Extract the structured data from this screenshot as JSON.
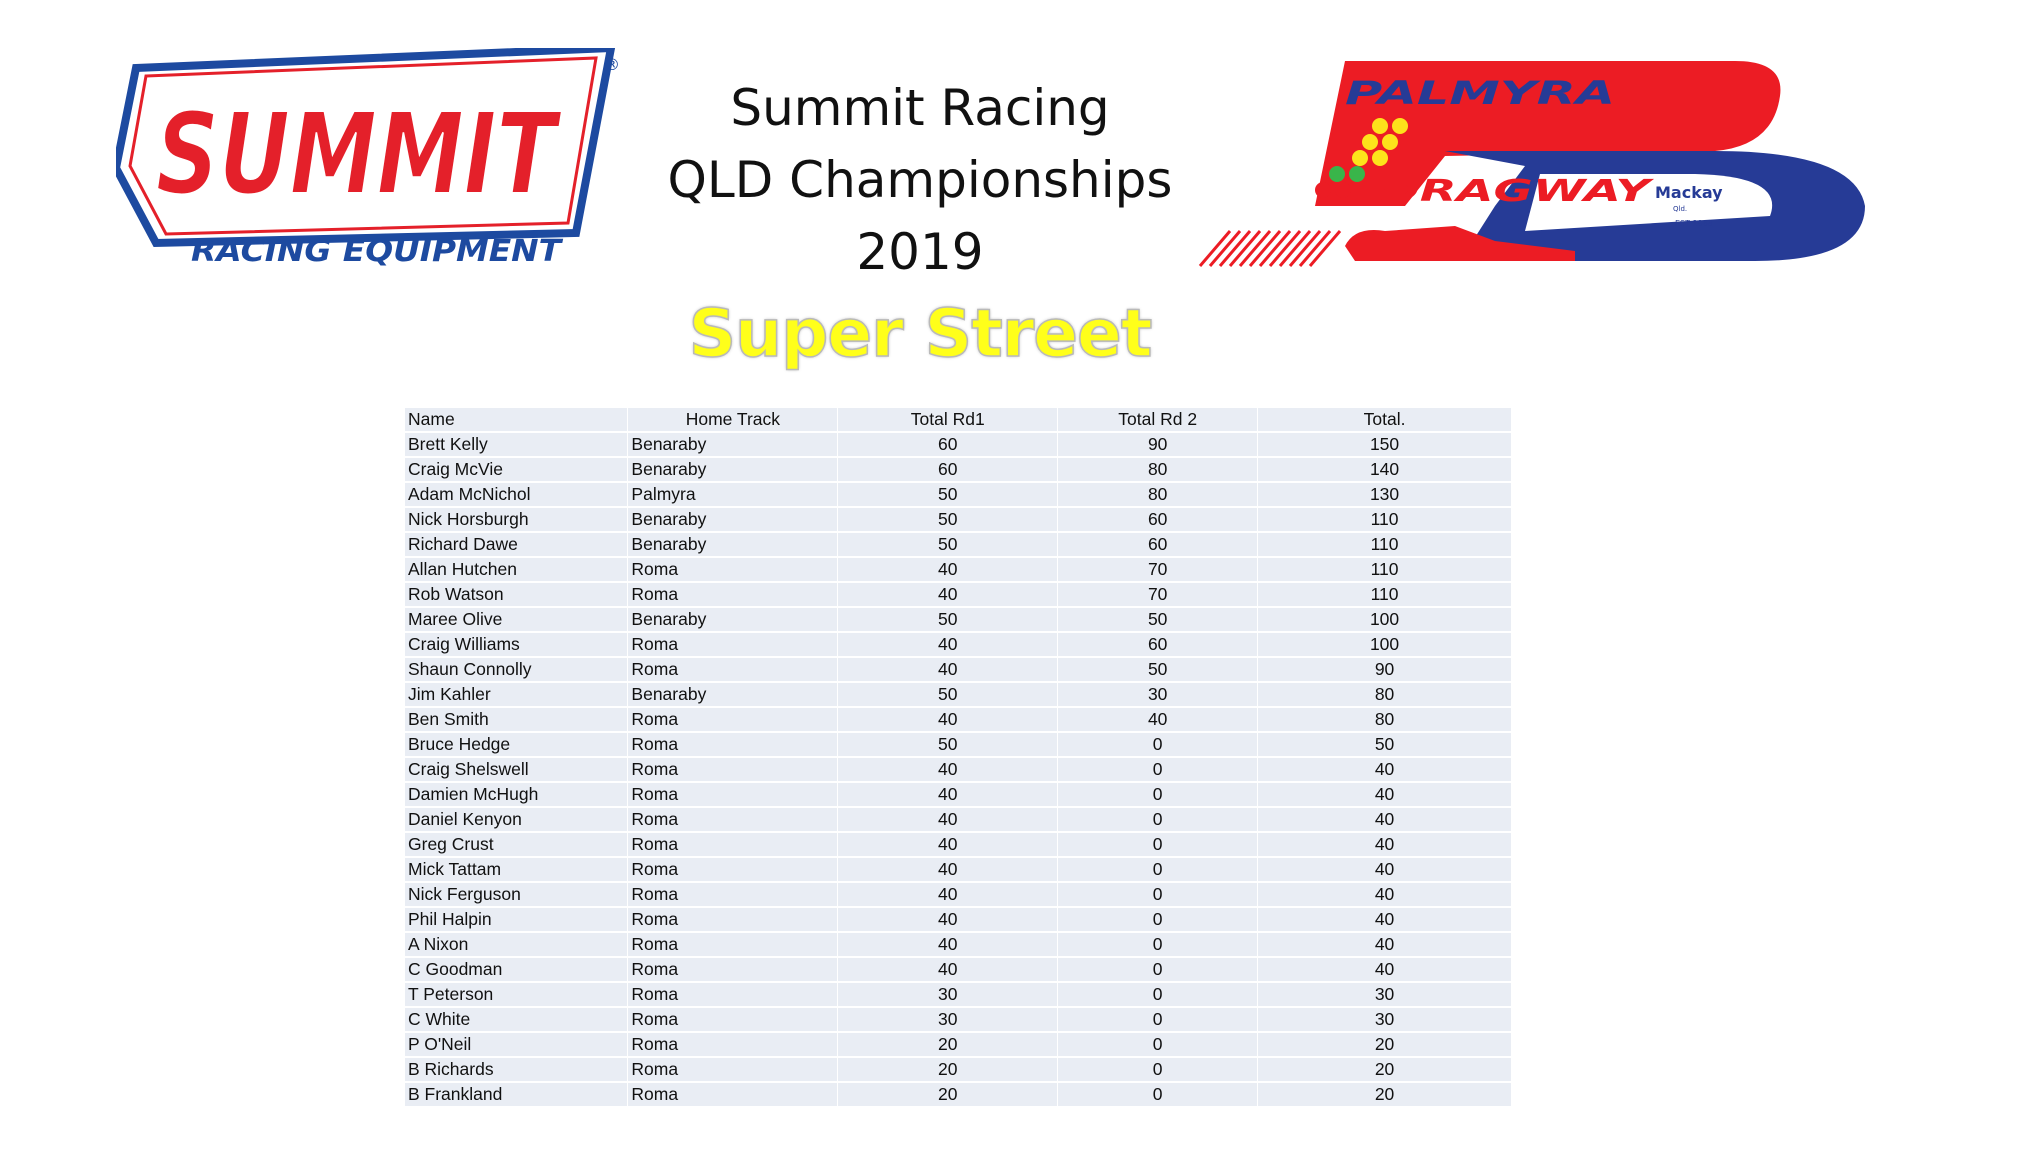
{
  "title_lines": [
    "Summit Racing",
    "QLD Championships",
    "2019"
  ],
  "class_name": "Super Street",
  "logos": {
    "summit": {
      "main": "SUMMIT",
      "sub": "RACING EQUIPMENT",
      "mark": "®",
      "colors": {
        "red": "#e4202a",
        "blue": "#1d4aa0"
      }
    },
    "palmyra": {
      "top": "PALMYRA",
      "bottom": "DRAGWAY",
      "place": "Mackay",
      "state": "Qld.",
      "est": "EST 1968",
      "colors": {
        "red": "#ec1c24",
        "blue": "#263b96",
        "yellow": "#fde21b",
        "green": "#39b54a"
      }
    }
  },
  "table": {
    "headers": [
      "Name",
      "Home Track",
      "Total Rd1",
      "Total Rd 2",
      "Total."
    ],
    "rows": [
      [
        "Brett Kelly",
        "Benaraby",
        "60",
        "90",
        "150"
      ],
      [
        "Craig McVie",
        "Benaraby",
        "60",
        "80",
        "140"
      ],
      [
        "Adam McNichol",
        "Palmyra",
        "50",
        "80",
        "130"
      ],
      [
        "Nick Horsburgh",
        "Benaraby",
        "50",
        "60",
        "110"
      ],
      [
        "Richard Dawe",
        "Benaraby",
        "50",
        "60",
        "110"
      ],
      [
        "Allan Hutchen",
        "Roma",
        "40",
        "70",
        "110"
      ],
      [
        "Rob Watson",
        "Roma",
        "40",
        "70",
        "110"
      ],
      [
        "Maree Olive",
        "Benaraby",
        "50",
        "50",
        "100"
      ],
      [
        "Craig Williams",
        "Roma",
        "40",
        "60",
        "100"
      ],
      [
        "Shaun Connolly",
        "Roma",
        "40",
        "50",
        "90"
      ],
      [
        "Jim Kahler",
        "Benaraby",
        "50",
        "30",
        "80"
      ],
      [
        "Ben Smith",
        "Roma",
        "40",
        "40",
        "80"
      ],
      [
        "Bruce Hedge",
        "Roma",
        "50",
        "0",
        "50"
      ],
      [
        "Craig Shelswell",
        "Roma",
        "40",
        "0",
        "40"
      ],
      [
        "Damien McHugh",
        "Roma",
        "40",
        "0",
        "40"
      ],
      [
        "Daniel Kenyon",
        "Roma",
        "40",
        "0",
        "40"
      ],
      [
        "Greg Crust",
        "Roma",
        "40",
        "0",
        "40"
      ],
      [
        "Mick Tattam",
        "Roma",
        "40",
        "0",
        "40"
      ],
      [
        "Nick Ferguson",
        "Roma",
        "40",
        "0",
        "40"
      ],
      [
        "Phil Halpin",
        "Roma",
        "40",
        "0",
        "40"
      ],
      [
        "A Nixon",
        "Roma",
        "40",
        "0",
        "40"
      ],
      [
        "C Goodman",
        "Roma",
        "40",
        "0",
        "40"
      ],
      [
        "T Peterson",
        "Roma",
        "30",
        "0",
        "30"
      ],
      [
        "C White",
        "Roma",
        "30",
        "0",
        "30"
      ],
      [
        "P O'Neil",
        "Roma",
        "20",
        "0",
        "20"
      ],
      [
        "B Richards",
        "Roma",
        "20",
        "0",
        "20"
      ],
      [
        "B Frankland",
        "Roma",
        "20",
        "0",
        "20"
      ]
    ]
  }
}
